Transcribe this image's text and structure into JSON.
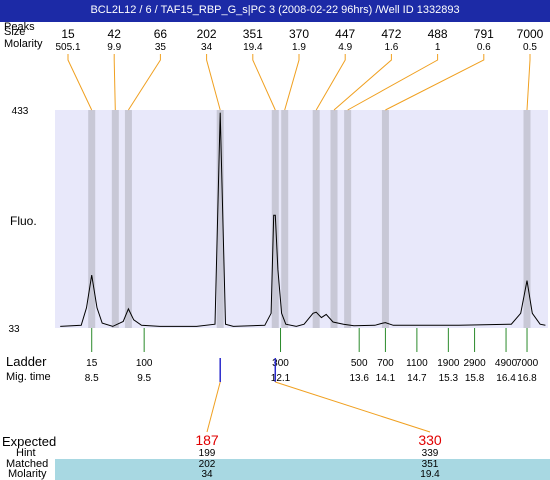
{
  "title": "BCL2L12 / 6 / TAF15_RBP_G_s|PC 3 (2008-02-22 96hrs) /Well ID 1332893",
  "labels": {
    "peaks_row_label": "Peaks",
    "size_row_label": "Size",
    "molarity_row_label": "Molarity",
    "y_axis": "Fluo.",
    "ladder_label": "Ladder",
    "migtime_label": "Mig. time",
    "expected_label": "Expected",
    "hint_label": "Hint",
    "matched_label": "Matched",
    "molarity_bottom_label": "Molarity"
  },
  "colors": {
    "header": "#1c2aa6",
    "plot_bg": "#e8e8fa",
    "band": "#c8c8d6",
    "orange": "#f0a020",
    "green": "#2a8a2a",
    "blue": "#2a2acc",
    "red": "#e00000",
    "table_bg": "#a8d8e2"
  },
  "chart_data": {
    "type": "line",
    "ylim": [
      33,
      433
    ],
    "y_ticks": [
      "433",
      "33"
    ],
    "peaks": [
      {
        "size": "15",
        "molarity": "505.1",
        "mig": 8.5
      },
      {
        "size": "42",
        "molarity": "9.9",
        "mig": 8.95
      },
      {
        "size": "66",
        "molarity": "35",
        "mig": 9.2
      },
      {
        "size": "202",
        "molarity": "34",
        "mig": 10.95
      },
      {
        "size": "351",
        "molarity": "19.4",
        "mig": 12.0
      },
      {
        "size": "370",
        "molarity": "1.9",
        "mig": 12.18
      },
      {
        "size": "447",
        "molarity": "4.9",
        "mig": 12.78
      },
      {
        "size": "472",
        "molarity": "1.6",
        "mig": 13.12
      },
      {
        "size": "488",
        "molarity": "1",
        "mig": 13.38
      },
      {
        "size": "791",
        "molarity": "0.6",
        "mig": 14.1
      },
      {
        "size": "7000",
        "molarity": "0.5",
        "mig": 16.8
      }
    ],
    "ladder": [
      {
        "size": "15",
        "mig": "8.5"
      },
      {
        "size": "100",
        "mig": "9.5"
      },
      {
        "size": "300",
        "mig": "12.1"
      },
      {
        "size": "500",
        "mig": "13.6"
      },
      {
        "size": "700",
        "mig": "14.1"
      },
      {
        "size": "1100",
        "mig": "14.7"
      },
      {
        "size": "1900",
        "mig": "15.3"
      },
      {
        "size": "2900",
        "mig": "15.8"
      },
      {
        "size": "4900",
        "mig": "16.4"
      },
      {
        "size": "7000",
        "mig": "16.8"
      }
    ],
    "trace": [
      [
        7.9,
        36
      ],
      [
        8.3,
        38
      ],
      [
        8.4,
        70
      ],
      [
        8.5,
        130
      ],
      [
        8.6,
        70
      ],
      [
        8.7,
        42
      ],
      [
        8.9,
        36
      ],
      [
        9.1,
        45
      ],
      [
        9.2,
        68
      ],
      [
        9.3,
        48
      ],
      [
        9.45,
        38
      ],
      [
        9.8,
        36
      ],
      [
        10.5,
        36
      ],
      [
        10.85,
        40
      ],
      [
        10.95,
        428
      ],
      [
        11.05,
        40
      ],
      [
        11.2,
        36
      ],
      [
        11.8,
        38
      ],
      [
        11.92,
        60
      ],
      [
        11.97,
        240
      ],
      [
        12.0,
        240
      ],
      [
        12.05,
        140
      ],
      [
        12.12,
        60
      ],
      [
        12.2,
        40
      ],
      [
        12.4,
        36
      ],
      [
        12.55,
        40
      ],
      [
        12.72,
        60
      ],
      [
        12.78,
        62
      ],
      [
        12.88,
        52
      ],
      [
        12.97,
        58
      ],
      [
        13.1,
        44
      ],
      [
        13.3,
        40
      ],
      [
        13.5,
        37
      ],
      [
        13.9,
        38
      ],
      [
        14.05,
        42
      ],
      [
        14.1,
        43
      ],
      [
        14.25,
        38
      ],
      [
        14.6,
        38
      ],
      [
        15.5,
        38
      ],
      [
        16.5,
        40
      ],
      [
        16.68,
        60
      ],
      [
        16.8,
        120
      ],
      [
        16.9,
        60
      ],
      [
        17.05,
        40
      ],
      [
        17.15,
        38
      ]
    ],
    "expected": [
      {
        "size": "187",
        "hint": "199",
        "matched": "202",
        "molarity": "34",
        "mig": 10.95
      },
      {
        "size": "330",
        "hint": "339",
        "matched": "351",
        "molarity": "19.4",
        "mig": 12.0
      }
    ]
  }
}
